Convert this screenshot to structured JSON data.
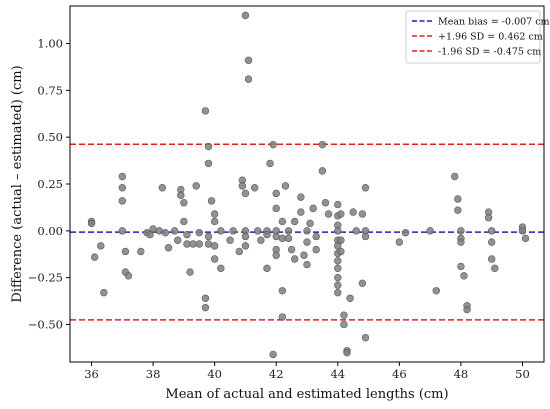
{
  "chart_data": {
    "type": "scatter",
    "xlabel": "Mean of actual and estimated lengths (cm)",
    "ylabel": "Difference (actual – estimated) (cm)",
    "xlim": [
      35.3,
      50.7
    ],
    "ylim": [
      -0.7,
      1.2
    ],
    "x_ticks": [
      36,
      38,
      40,
      42,
      44,
      46,
      48,
      50
    ],
    "y_ticks": [
      -0.5,
      -0.25,
      0.0,
      0.25,
      0.5,
      0.75,
      1.0
    ],
    "y_tick_labels": [
      "−0.50",
      "−0.25",
      "0.00",
      "0.25",
      "0.50",
      "0.75",
      "1.00"
    ],
    "grid": false,
    "legend_position": "top-right",
    "reference_lines": [
      {
        "name": "Mean bias = -0.007 cm",
        "y": -0.007,
        "color": "#1f1fbf",
        "style": "dashed"
      },
      {
        "name": "+1.96 SD = 0.462 cm",
        "y": 0.462,
        "color": "#e02020",
        "style": "dashed"
      },
      {
        "name": "-1.96 SD = -0.475 cm",
        "y": -0.475,
        "color": "#e02020",
        "style": "dashed"
      }
    ],
    "point_color": "#7f7f7f",
    "points": [
      [
        36.0,
        0.05
      ],
      [
        36.0,
        0.04
      ],
      [
        36.1,
        -0.14
      ],
      [
        36.3,
        -0.08
      ],
      [
        36.4,
        -0.33
      ],
      [
        37.0,
        0.29
      ],
      [
        37.0,
        0.23
      ],
      [
        37.0,
        0.16
      ],
      [
        37.0,
        0.0
      ],
      [
        37.1,
        -0.11
      ],
      [
        37.1,
        -0.22
      ],
      [
        37.2,
        -0.24
      ],
      [
        37.6,
        -0.11
      ],
      [
        37.8,
        -0.01
      ],
      [
        37.9,
        -0.02
      ],
      [
        38.0,
        0.01
      ],
      [
        38.2,
        0.0
      ],
      [
        38.3,
        0.23
      ],
      [
        38.4,
        -0.01
      ],
      [
        38.5,
        -0.09
      ],
      [
        38.7,
        0.0
      ],
      [
        38.8,
        -0.05
      ],
      [
        38.9,
        0.22
      ],
      [
        38.9,
        0.19
      ],
      [
        39.0,
        0.15
      ],
      [
        39.0,
        0.05
      ],
      [
        39.1,
        -0.02
      ],
      [
        39.1,
        -0.07
      ],
      [
        39.2,
        -0.22
      ],
      [
        39.3,
        -0.07
      ],
      [
        39.4,
        0.24
      ],
      [
        39.5,
        -0.01
      ],
      [
        39.5,
        -0.07
      ],
      [
        39.7,
        0.64
      ],
      [
        39.7,
        -0.36
      ],
      [
        39.7,
        -0.41
      ],
      [
        39.8,
        0.45
      ],
      [
        39.8,
        0.36
      ],
      [
        39.8,
        -0.03
      ],
      [
        39.8,
        -0.07
      ],
      [
        39.9,
        0.16
      ],
      [
        40.0,
        0.09
      ],
      [
        40.0,
        0.05
      ],
      [
        40.0,
        -0.08
      ],
      [
        40.0,
        -0.15
      ],
      [
        40.2,
        -0.2
      ],
      [
        40.2,
        0.0
      ],
      [
        40.5,
        -0.05
      ],
      [
        40.6,
        0.0
      ],
      [
        40.8,
        -0.11
      ],
      [
        40.9,
        0.27
      ],
      [
        40.9,
        0.24
      ],
      [
        41.0,
        1.15
      ],
      [
        41.0,
        0.2
      ],
      [
        41.0,
        0.0
      ],
      [
        41.0,
        -0.03
      ],
      [
        41.0,
        -0.08
      ],
      [
        41.1,
        0.91
      ],
      [
        41.1,
        0.81
      ],
      [
        41.3,
        0.23
      ],
      [
        41.4,
        0.0
      ],
      [
        41.5,
        -0.05
      ],
      [
        41.7,
        0.0
      ],
      [
        41.7,
        -0.02
      ],
      [
        41.7,
        -0.2
      ],
      [
        41.8,
        0.36
      ],
      [
        41.9,
        0.46
      ],
      [
        41.9,
        -0.66
      ],
      [
        42.0,
        0.2
      ],
      [
        42.0,
        0.12
      ],
      [
        42.0,
        0.0
      ],
      [
        42.0,
        -0.03
      ],
      [
        42.0,
        -0.1
      ],
      [
        42.0,
        -0.13
      ],
      [
        42.2,
        0.05
      ],
      [
        42.2,
        -0.04
      ],
      [
        42.2,
        -0.32
      ],
      [
        42.2,
        -0.46
      ],
      [
        42.3,
        0.24
      ],
      [
        42.4,
        0.0
      ],
      [
        42.4,
        -0.04
      ],
      [
        42.5,
        -0.1
      ],
      [
        42.6,
        -0.15
      ],
      [
        42.6,
        0.05
      ],
      [
        42.8,
        0.1
      ],
      [
        42.8,
        0.18
      ],
      [
        42.9,
        -0.13
      ],
      [
        43.0,
        0.0
      ],
      [
        43.0,
        -0.06
      ],
      [
        43.0,
        -0.18
      ],
      [
        43.1,
        0.04
      ],
      [
        43.2,
        0.12
      ],
      [
        43.3,
        -0.03
      ],
      [
        43.3,
        -0.1
      ],
      [
        43.5,
        0.46
      ],
      [
        43.5,
        0.32
      ],
      [
        43.6,
        0.15
      ],
      [
        43.7,
        0.09
      ],
      [
        44.0,
        0.14
      ],
      [
        44.0,
        0.08
      ],
      [
        44.0,
        0.03
      ],
      [
        44.0,
        0.0
      ],
      [
        44.0,
        -0.05
      ],
      [
        44.0,
        -0.08
      ],
      [
        44.0,
        -0.12
      ],
      [
        44.0,
        -0.16
      ],
      [
        44.0,
        -0.2
      ],
      [
        44.0,
        -0.25
      ],
      [
        44.0,
        -0.29
      ],
      [
        44.0,
        -0.33
      ],
      [
        44.1,
        0.09
      ],
      [
        44.1,
        -0.05
      ],
      [
        44.1,
        -0.11
      ],
      [
        44.2,
        -0.45
      ],
      [
        44.2,
        -0.5
      ],
      [
        44.3,
        -0.64
      ],
      [
        44.3,
        -0.65
      ],
      [
        44.4,
        -0.36
      ],
      [
        44.5,
        0.1
      ],
      [
        44.6,
        0.0
      ],
      [
        44.9,
        0.23
      ],
      [
        44.9,
        0.0
      ],
      [
        44.9,
        -0.03
      ],
      [
        44.8,
        0.09
      ],
      [
        44.8,
        -0.28
      ],
      [
        44.9,
        -0.57
      ],
      [
        46.0,
        -0.06
      ],
      [
        46.2,
        -0.01
      ],
      [
        47.0,
        0.0
      ],
      [
        47.2,
        -0.32
      ],
      [
        47.8,
        0.29
      ],
      [
        47.9,
        0.17
      ],
      [
        47.9,
        0.11
      ],
      [
        48.0,
        0.0
      ],
      [
        48.0,
        -0.04
      ],
      [
        48.0,
        -0.06
      ],
      [
        48.0,
        -0.19
      ],
      [
        48.1,
        -0.24
      ],
      [
        48.2,
        -0.4
      ],
      [
        48.2,
        -0.42
      ],
      [
        48.9,
        0.1
      ],
      [
        48.9,
        0.07
      ],
      [
        49.0,
        0.0
      ],
      [
        49.0,
        -0.06
      ],
      [
        49.0,
        -0.15
      ],
      [
        49.1,
        -0.2
      ],
      [
        50.0,
        0.02
      ],
      [
        50.0,
        0.0
      ],
      [
        50.1,
        -0.04
      ]
    ]
  }
}
